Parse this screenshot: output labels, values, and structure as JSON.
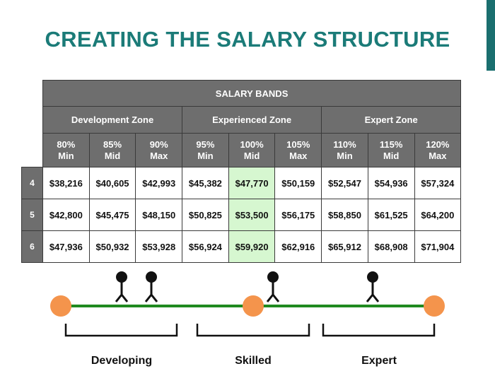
{
  "header": {
    "title": "CREATING THE SALARY STRUCTURE"
  },
  "table": {
    "title": "SALARY BANDS",
    "zones": [
      "Development Zone",
      "Experienced Zone",
      "Expert Zone"
    ],
    "columns": [
      {
        "pct": "80%",
        "label": "Min"
      },
      {
        "pct": "85%",
        "label": "Mid"
      },
      {
        "pct": "90%",
        "label": "Max"
      },
      {
        "pct": "95%",
        "label": "Min"
      },
      {
        "pct": "100%",
        "label": "Mid"
      },
      {
        "pct": "105%",
        "label": "Max"
      },
      {
        "pct": "110%",
        "label": "Min"
      },
      {
        "pct": "115%",
        "label": "Mid"
      },
      {
        "pct": "120%",
        "label": "Max"
      }
    ],
    "rows": [
      {
        "level": "4",
        "cells": [
          "$38,216",
          "$40,605",
          "$42,993",
          "$45,382",
          "$47,770",
          "$50,159",
          "$52,547",
          "$54,936",
          "$57,324"
        ]
      },
      {
        "level": "5",
        "cells": [
          "$42,800",
          "$45,475",
          "$48,150",
          "$50,825",
          "$53,500",
          "$56,175",
          "$58,850",
          "$61,525",
          "$64,200"
        ]
      },
      {
        "level": "6",
        "cells": [
          "$47,936",
          "$50,932",
          "$53,928",
          "$56,924",
          "$59,920",
          "$62,916",
          "$65,912",
          "$68,908",
          "$71,904"
        ]
      }
    ]
  },
  "diagram": {
    "stages": [
      "Developing",
      "Skilled",
      "Expert"
    ]
  }
}
